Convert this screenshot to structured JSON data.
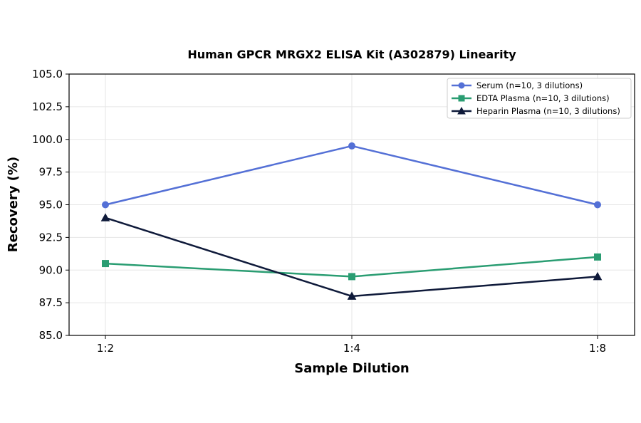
{
  "chart_data": {
    "type": "line",
    "title": "Human GPCR MRGX2 ELISA Kit (A302879) Linearity",
    "xlabel": "Sample Dilution",
    "ylabel": "Recovery (%)",
    "categories": [
      "1:2",
      "1:4",
      "1:8"
    ],
    "ylim": [
      85.0,
      105.0
    ],
    "yticks": [
      "85.0",
      "87.5",
      "90.0",
      "92.5",
      "95.0",
      "97.5",
      "100.0",
      "102.5",
      "105.0"
    ],
    "ytick_values": [
      85.0,
      87.5,
      90.0,
      92.5,
      95.0,
      97.5,
      100.0,
      102.5,
      105.0
    ],
    "grid": true,
    "legend_position": "top-right",
    "series": [
      {
        "name": "Serum (n=10, 3 dilutions)",
        "values": [
          95.0,
          99.5,
          95.0
        ],
        "color": "#5470D6",
        "marker": "circle"
      },
      {
        "name": "EDTA Plasma (n=10, 3 dilutions)",
        "values": [
          90.5,
          89.5,
          91.0
        ],
        "color": "#2A9D72",
        "marker": "square"
      },
      {
        "name": "Heparin Plasma (n=10, 3 dilutions)",
        "values": [
          94.0,
          88.0,
          89.5
        ],
        "color": "#0F1A3A",
        "marker": "triangle"
      }
    ]
  }
}
